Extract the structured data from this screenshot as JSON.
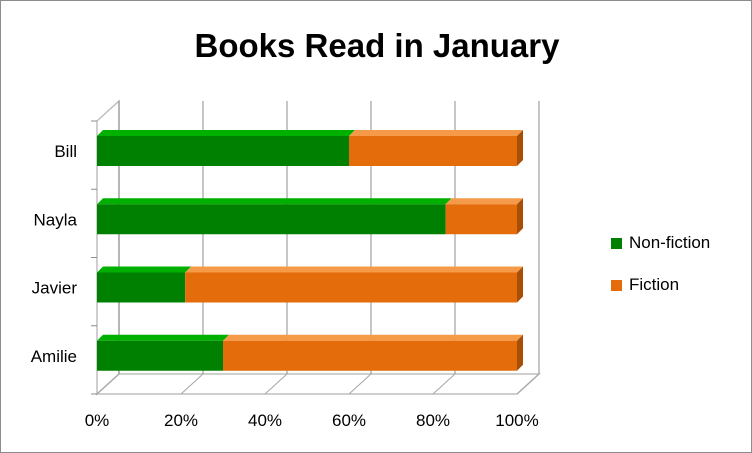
{
  "chart_data": {
    "type": "bar",
    "orientation": "horizontal",
    "stacked": "percent",
    "title": "Books Read in January",
    "categories": [
      "Bill",
      "Nayla",
      "Javier",
      "Amilie"
    ],
    "series": [
      {
        "name": "Non-fiction",
        "values": [
          60,
          83,
          21,
          30
        ],
        "color": "#008000",
        "top_color": "#00b000",
        "side_color": "#005a00"
      },
      {
        "name": "Fiction",
        "values": [
          40,
          17,
          79,
          70
        ],
        "color": "#e46c0a",
        "top_color": "#f59a48",
        "side_color": "#a84e06"
      }
    ],
    "x_ticks": [
      "0%",
      "20%",
      "40%",
      "60%",
      "80%",
      "100%"
    ],
    "xlim": [
      0,
      100
    ],
    "grid": true,
    "legend_position": "right"
  }
}
